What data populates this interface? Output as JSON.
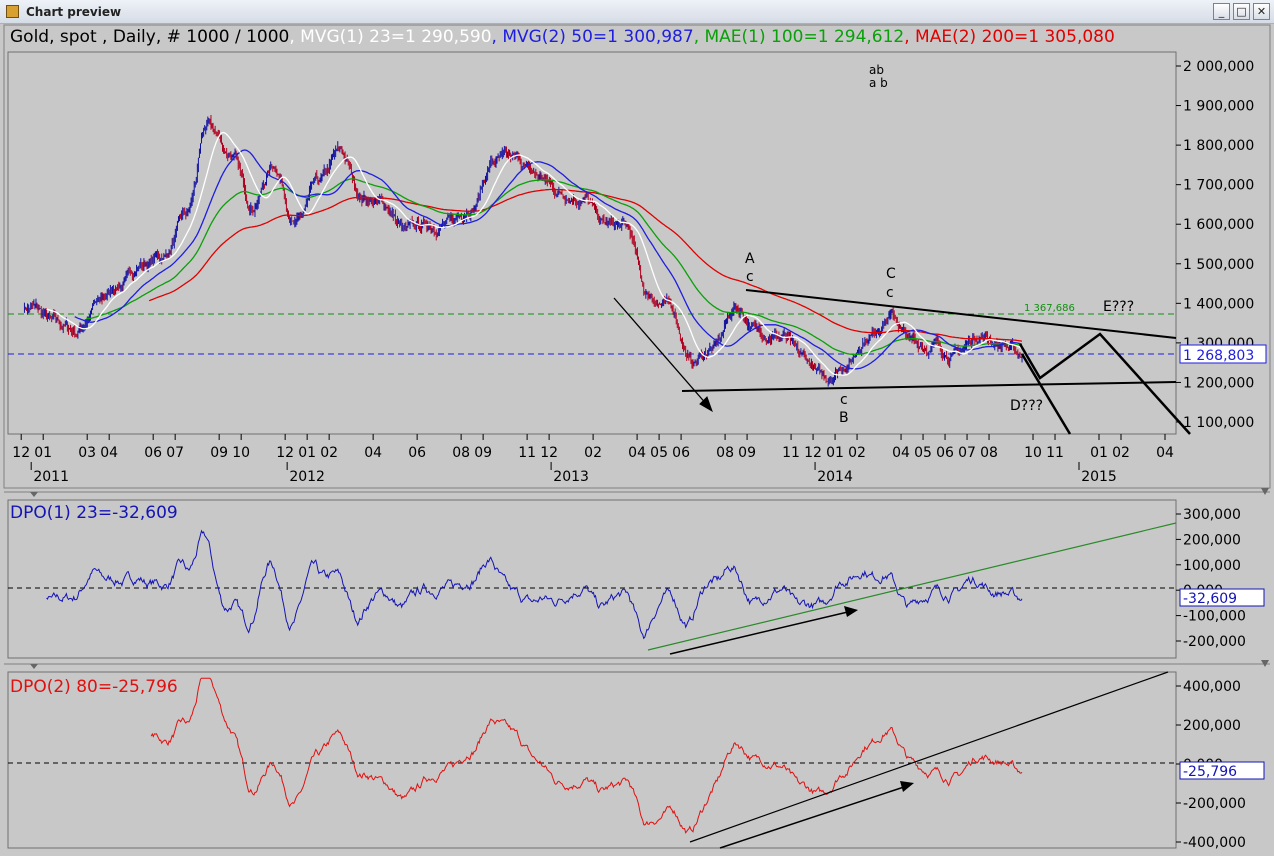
{
  "window": {
    "title": "Chart preview",
    "buttons": [
      "_",
      "□",
      "✕"
    ]
  },
  "colors": {
    "mvg1": "#ffffff",
    "mvg2": "#1e1ee0",
    "mae1": "#0aa00a",
    "mae2": "#e00000",
    "dpo1": "#1414b4",
    "dpo2": "#e01010",
    "panel": "#c8c8c8"
  },
  "legend": {
    "instrument": "Gold, spot , Daily, # 1000 / 1000",
    "mvg1": ", MVG(1) 23=1 290,590",
    "mvg2": ", MVG(2) 50=1 300,987",
    "mae1": ", MAE(1) 100=1 294,612",
    "mae2": ", MAE(2) 200=1 305,080"
  },
  "price_axis": {
    "ticks": [
      "2 000,000",
      "1 900,000",
      "1 800,000",
      "1 700,000",
      "1 600,000",
      "1 500,000",
      "1 400,000",
      "1 300,000",
      "1 200,000",
      "1 100,000"
    ],
    "last_value": "1 268,803",
    "green_level_label": "1 367,686"
  },
  "time_axis": {
    "months": [
      "12",
      "01",
      "03",
      "04",
      "06",
      "07",
      "09",
      "10",
      "12",
      "01",
      "02",
      "04",
      "06",
      "08",
      "09",
      "11",
      "12",
      "02",
      "04",
      "05",
      "06",
      "08",
      "09",
      "11",
      "12",
      "01",
      "02",
      "04",
      "05",
      "06",
      "07",
      "08",
      "10",
      "11",
      "01",
      "02",
      "04"
    ],
    "years": [
      "2011",
      "2012",
      "2013",
      "2014",
      "2015"
    ]
  },
  "annotations": {
    "ab_top": "ab",
    "ab_bottom": "a b",
    "A": "A",
    "A_c": "c",
    "C": "C",
    "C_c": "c",
    "B_c": "c",
    "B": "B",
    "E": "E???",
    "D": "D???"
  },
  "dpo1": {
    "label": "DPO(1) 23=-32,609",
    "ticks": [
      "300,000",
      "200,000",
      "100,000",
      "0,000",
      "-100,000",
      "-200,000"
    ],
    "last_value": "-32,609"
  },
  "dpo2": {
    "label": "DPO(2) 80=-25,796",
    "ticks": [
      "400,000",
      "200,000",
      "0,000",
      "-200,000",
      "-400,000"
    ],
    "last_value": "-25,796"
  },
  "chart_data": [
    {
      "type": "candlestick",
      "title": "Gold, spot , Daily, # 1000 / 1000",
      "ylim": [
        1050,
        2050
      ],
      "x_range": [
        "2010-12",
        "2015-04"
      ],
      "series": [
        {
          "name": "MVG(1) 23",
          "last": 1290.59
        },
        {
          "name": "MVG(2) 50",
          "last": 1300.987
        },
        {
          "name": "MAE(1) 100",
          "last": 1294.612
        },
        {
          "name": "MAE(2) 200",
          "last": 1305.08
        }
      ],
      "price_path": [
        {
          "x": "2010-12",
          "y": 1390
        },
        {
          "x": "2011-01",
          "y": 1350
        },
        {
          "x": "2011-02",
          "y": 1330
        },
        {
          "x": "2011-03",
          "y": 1400
        },
        {
          "x": "2011-04",
          "y": 1450
        },
        {
          "x": "2011-05",
          "y": 1500
        },
        {
          "x": "2011-06",
          "y": 1520
        },
        {
          "x": "2011-07",
          "y": 1620
        },
        {
          "x": "2011-08",
          "y": 1850
        },
        {
          "x": "2011-09",
          "y": 1780
        },
        {
          "x": "2011-10",
          "y": 1650
        },
        {
          "x": "2011-11",
          "y": 1750
        },
        {
          "x": "2011-12",
          "y": 1600
        },
        {
          "x": "2012-01",
          "y": 1700
        },
        {
          "x": "2012-02",
          "y": 1780
        },
        {
          "x": "2012-03",
          "y": 1670
        },
        {
          "x": "2012-04",
          "y": 1650
        },
        {
          "x": "2012-05",
          "y": 1580
        },
        {
          "x": "2012-06",
          "y": 1600
        },
        {
          "x": "2012-07",
          "y": 1600
        },
        {
          "x": "2012-08",
          "y": 1650
        },
        {
          "x": "2012-09",
          "y": 1760
        },
        {
          "x": "2012-10",
          "y": 1760
        },
        {
          "x": "2012-11",
          "y": 1720
        },
        {
          "x": "2012-12",
          "y": 1680
        },
        {
          "x": "2013-01",
          "y": 1670
        },
        {
          "x": "2013-02",
          "y": 1600
        },
        {
          "x": "2013-03",
          "y": 1590
        },
        {
          "x": "2013-04",
          "y": 1420
        },
        {
          "x": "2013-05",
          "y": 1390
        },
        {
          "x": "2013-06",
          "y": 1250
        },
        {
          "x": "2013-07",
          "y": 1290
        },
        {
          "x": "2013-08",
          "y": 1390
        },
        {
          "x": "2013-09",
          "y": 1330
        },
        {
          "x": "2013-10",
          "y": 1320
        },
        {
          "x": "2013-11",
          "y": 1260
        },
        {
          "x": "2013-12",
          "y": 1210
        },
        {
          "x": "2014-01",
          "y": 1250
        },
        {
          "x": "2014-02",
          "y": 1320
        },
        {
          "x": "2014-03",
          "y": 1370
        },
        {
          "x": "2014-04",
          "y": 1300
        },
        {
          "x": "2014-05",
          "y": 1290
        },
        {
          "x": "2014-06",
          "y": 1270
        },
        {
          "x": "2014-07",
          "y": 1320
        },
        {
          "x": "2014-08",
          "y": 1300
        },
        {
          "x": "2014-09",
          "y": 1269
        }
      ],
      "levels": {
        "green_dashed": 1367.686,
        "blue_dashed": 1268.803
      }
    },
    {
      "type": "line",
      "title": "DPO(1) 23=-32,609",
      "ylim": [
        -260,
        330
      ],
      "series": [
        {
          "name": "DPO(1) 23",
          "last": -32.609
        }
      ]
    },
    {
      "type": "line",
      "title": "DPO(2) 80=-25,796",
      "ylim": [
        -430,
        470
      ],
      "series": [
        {
          "name": "DPO(2) 80",
          "last": -25.796
        }
      ]
    }
  ]
}
